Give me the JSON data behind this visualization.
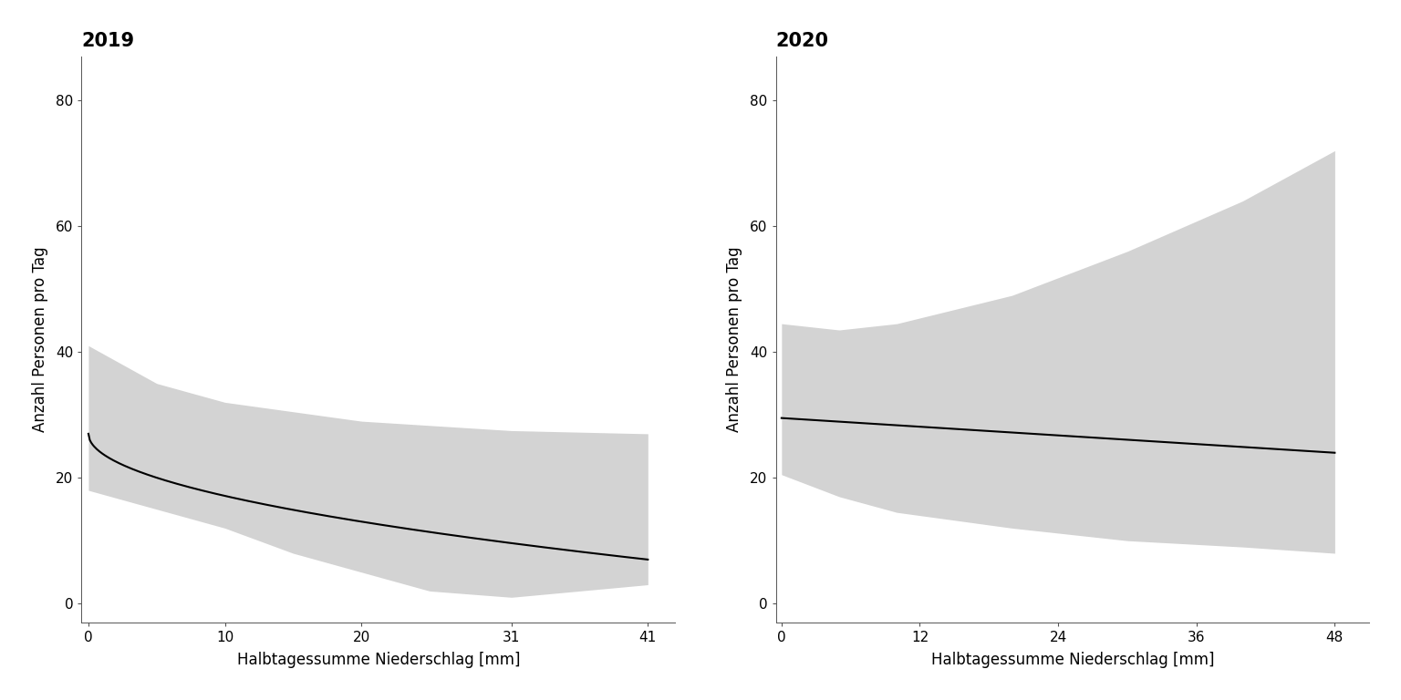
{
  "panel_2019": {
    "title": "2019",
    "xlabel": "Halbtagessumme Niederschlag [mm]",
    "ylabel": "Anzahl Personen pro Tag",
    "xlim": [
      -0.5,
      43
    ],
    "ylim": [
      -3,
      87
    ],
    "xticks": [
      0,
      10,
      20,
      31,
      41
    ],
    "yticks": [
      0,
      20,
      40,
      60,
      80
    ],
    "x_max": 41,
    "line_a": 27.0,
    "line_b": -4.9,
    "ci_upper_pts_x": [
      0,
      5,
      10,
      20,
      31,
      41
    ],
    "ci_upper_pts_y": [
      41,
      35,
      32,
      29,
      27.5,
      27
    ],
    "ci_lower_pts_x": [
      0,
      5,
      10,
      15,
      20,
      25,
      31,
      41
    ],
    "ci_lower_pts_y": [
      18,
      15,
      12,
      8,
      5,
      2,
      1,
      3
    ]
  },
  "panel_2020": {
    "title": "2020",
    "xlabel": "Halbtagessumme Niederschlag [mm]",
    "ylabel": "Anzahl Personen pro Tag",
    "xlim": [
      -0.5,
      51
    ],
    "ylim": [
      -3,
      87
    ],
    "xticks": [
      0,
      12,
      24,
      36,
      48
    ],
    "yticks": [
      0,
      20,
      40,
      60,
      80
    ],
    "x_max": 48,
    "line_a": 29.5,
    "line_b": -0.115,
    "ci_upper_pts_x": [
      0,
      5,
      10,
      20,
      30,
      40,
      48
    ],
    "ci_upper_pts_y": [
      44.5,
      43.5,
      44.5,
      49,
      56,
      64,
      72
    ],
    "ci_lower_pts_x": [
      0,
      5,
      10,
      20,
      30,
      40,
      48
    ],
    "ci_lower_pts_y": [
      20.5,
      17,
      14.5,
      12,
      10,
      9,
      8
    ]
  },
  "bg_color": "#ffffff",
  "ci_color": "#d3d3d3",
  "line_color": "#000000",
  "title_fontsize": 15,
  "label_fontsize": 12,
  "tick_fontsize": 11,
  "line_width": 1.5
}
